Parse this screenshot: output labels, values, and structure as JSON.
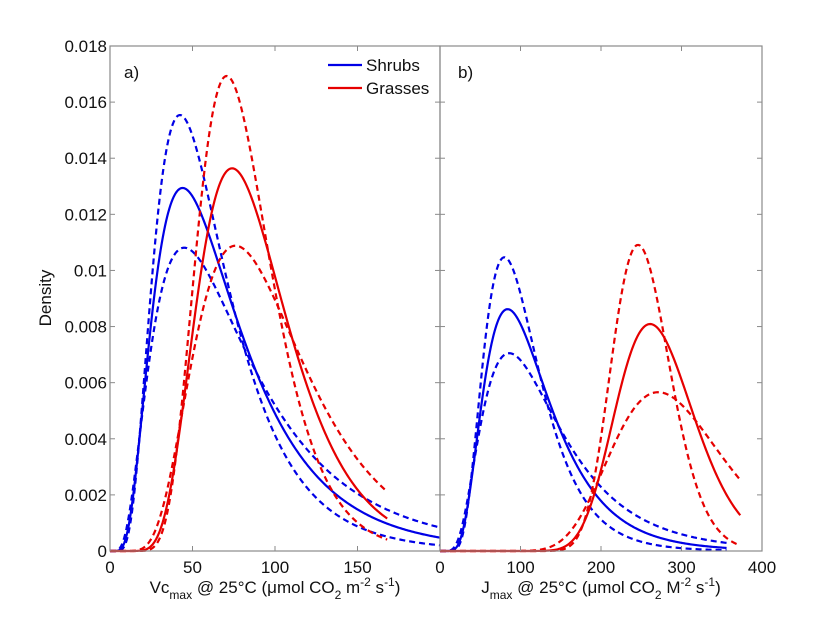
{
  "chart_data": [
    {
      "type": "line",
      "panel_label": "a)",
      "xlabel": {
        "main": "Vc",
        "sub": "max",
        "rest": " @ 25°C (μmol CO",
        "sub2": "2",
        "rest2": " m",
        "sup": "-2",
        "rest3": " s",
        "sup2": "-1",
        "rest4": ")"
      },
      "ylabel": "Density",
      "xlim": [
        0,
        200
      ],
      "ylim": [
        0,
        0.018
      ],
      "xticks": [
        0,
        50,
        100,
        150
      ],
      "xtick_labels": [
        "0",
        "50",
        "100",
        "150"
      ],
      "yticks": [
        0,
        0.002,
        0.004,
        0.006,
        0.008,
        0.01,
        0.012,
        0.014,
        0.016,
        0.018
      ],
      "ytick_labels": [
        "0",
        "0.002",
        "0.004",
        "0.006",
        "0.008",
        "0.01",
        "0.012",
        "0.014",
        "0.016",
        "0.018"
      ],
      "grid": false,
      "legend": {
        "position": "top-right",
        "entries": [
          {
            "label": "Shrubs",
            "color": "#0000e6"
          },
          {
            "label": "Grasses",
            "color": "#e60000"
          }
        ]
      },
      "distribution": "lognormal",
      "series": [
        {
          "name": "Shrubs",
          "style": "solid",
          "color": "#0000e6",
          "mode": 44,
          "peak": 0.01294,
          "x_range": [
            0,
            200
          ]
        },
        {
          "name": "Shrubs upper bound",
          "style": "dashed",
          "color": "#0000e6",
          "mode": 42.4,
          "peak": 0.01554,
          "x_range": [
            0,
            200
          ]
        },
        {
          "name": "Shrubs lower bound",
          "style": "dashed",
          "color": "#0000e6",
          "mode": 45,
          "peak": 0.01081,
          "x_range": [
            0,
            200
          ]
        },
        {
          "name": "Grasses",
          "style": "solid",
          "color": "#e60000",
          "mode": 74,
          "peak": 0.01364,
          "x_range": [
            0,
            168
          ]
        },
        {
          "name": "Grasses upper bound",
          "style": "dashed",
          "color": "#e60000",
          "mode": 70.7,
          "peak": 0.01693,
          "x_range": [
            0,
            168
          ]
        },
        {
          "name": "Grasses lower bound",
          "style": "dashed",
          "color": "#e60000",
          "mode": 76,
          "peak": 0.01088,
          "x_range": [
            0,
            168
          ]
        }
      ]
    },
    {
      "type": "line",
      "panel_label": "b)",
      "xlabel": {
        "main": "J",
        "sub": "max",
        "rest": " @ 25°C (μmol CO",
        "sub2": "2",
        "rest2": " M",
        "sup": "-2",
        "rest3": " s",
        "sup2": "-1",
        "rest4": ")"
      },
      "ylabel": "",
      "xlim": [
        0,
        400
      ],
      "ylim": [
        0,
        0.018
      ],
      "xticks": [
        0,
        100,
        200,
        300,
        400
      ],
      "xtick_labels": [
        "0",
        "100",
        "200",
        "300",
        "400"
      ],
      "grid": false,
      "distribution": "lognormal",
      "series": [
        {
          "name": "Shrubs",
          "style": "solid",
          "color": "#0000e6",
          "mode": 84,
          "peak": 0.00862,
          "x_range": [
            0,
            356
          ]
        },
        {
          "name": "Shrubs upper bound",
          "style": "dashed",
          "color": "#0000e6",
          "mode": 80,
          "peak": 0.01047,
          "x_range": [
            0,
            356
          ]
        },
        {
          "name": "Shrubs lower bound",
          "style": "dashed",
          "color": "#0000e6",
          "mode": 86,
          "peak": 0.00705,
          "x_range": [
            0,
            356
          ]
        },
        {
          "name": "Grasses",
          "style": "solid",
          "color": "#e60000",
          "mode": 261,
          "peak": 0.00809,
          "x_range": [
            0,
            373
          ]
        },
        {
          "name": "Grasses upper bound",
          "style": "dashed",
          "color": "#e60000",
          "mode": 246,
          "peak": 0.01091,
          "x_range": [
            0,
            373
          ]
        },
        {
          "name": "Grasses lower bound",
          "style": "dashed",
          "color": "#e60000",
          "mode": 271,
          "peak": 0.00566,
          "x_range": [
            0,
            373
          ]
        }
      ]
    }
  ]
}
